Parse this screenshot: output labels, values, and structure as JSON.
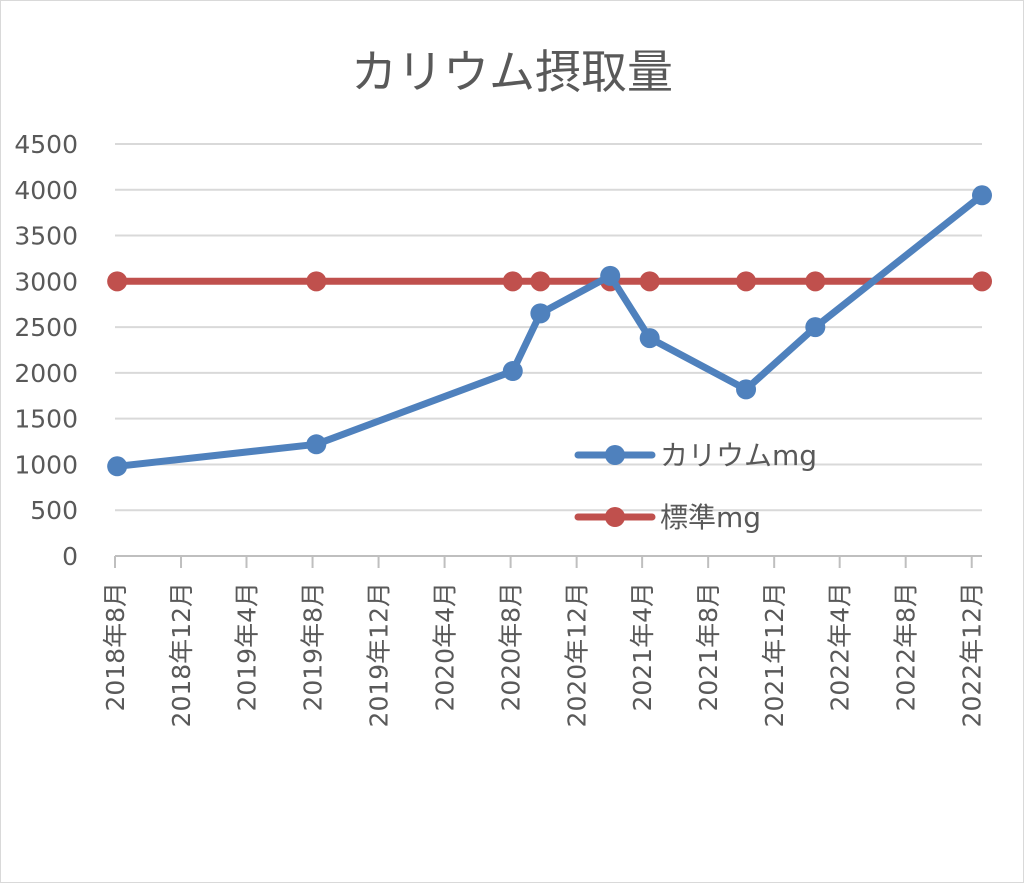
{
  "chart_data": {
    "type": "line",
    "title": "カリウム摂取量",
    "xlabel": "",
    "ylabel": "",
    "ylim": [
      0,
      4500
    ],
    "y_ticks": [
      "0",
      "500",
      "1000",
      "1500",
      "2000",
      "2500",
      "3000",
      "3500",
      "4000",
      "4500"
    ],
    "grid": true,
    "legend_position": "right",
    "x_ticks": [
      "2018年8月",
      "2018年12月",
      "2019年4月",
      "2019年8月",
      "2019年12月",
      "2020年4月",
      "2020年8月",
      "2020年12月",
      "2021年4月",
      "2021年8月",
      "2021年12月",
      "2022年4月",
      "2022年8月",
      "2022年12月"
    ],
    "x_tick_dates": [
      "2018-08",
      "2018-12",
      "2019-04",
      "2019-08",
      "2019-12",
      "2020-04",
      "2020-08",
      "2020-12",
      "2021-04",
      "2021-08",
      "2021-12",
      "2022-04",
      "2022-08",
      "2022-12"
    ],
    "series": [
      {
        "name": "カリウムmg",
        "color": "#4f81bd",
        "points": [
          {
            "x": "2018-08-05",
            "y": 980
          },
          {
            "x": "2019-08-08",
            "y": 1220
          },
          {
            "x": "2020-08-05",
            "y": 2020
          },
          {
            "x": "2020-09-25",
            "y": 2650
          },
          {
            "x": "2021-02-01",
            "y": 3060
          },
          {
            "x": "2021-04-15",
            "y": 2380
          },
          {
            "x": "2021-10-10",
            "y": 1820
          },
          {
            "x": "2022-02-15",
            "y": 2500
          },
          {
            "x": "2022-12-20",
            "y": 3940
          }
        ]
      },
      {
        "name": "標準mg",
        "color": "#c0504d",
        "points": [
          {
            "x": "2018-08-05",
            "y": 3000
          },
          {
            "x": "2019-08-08",
            "y": 3000
          },
          {
            "x": "2020-08-05",
            "y": 3000
          },
          {
            "x": "2020-09-25",
            "y": 3000
          },
          {
            "x": "2021-02-01",
            "y": 3000
          },
          {
            "x": "2021-04-15",
            "y": 3000
          },
          {
            "x": "2021-10-10",
            "y": 3000
          },
          {
            "x": "2022-02-15",
            "y": 3000
          },
          {
            "x": "2022-12-20",
            "y": 3000
          }
        ]
      }
    ]
  }
}
